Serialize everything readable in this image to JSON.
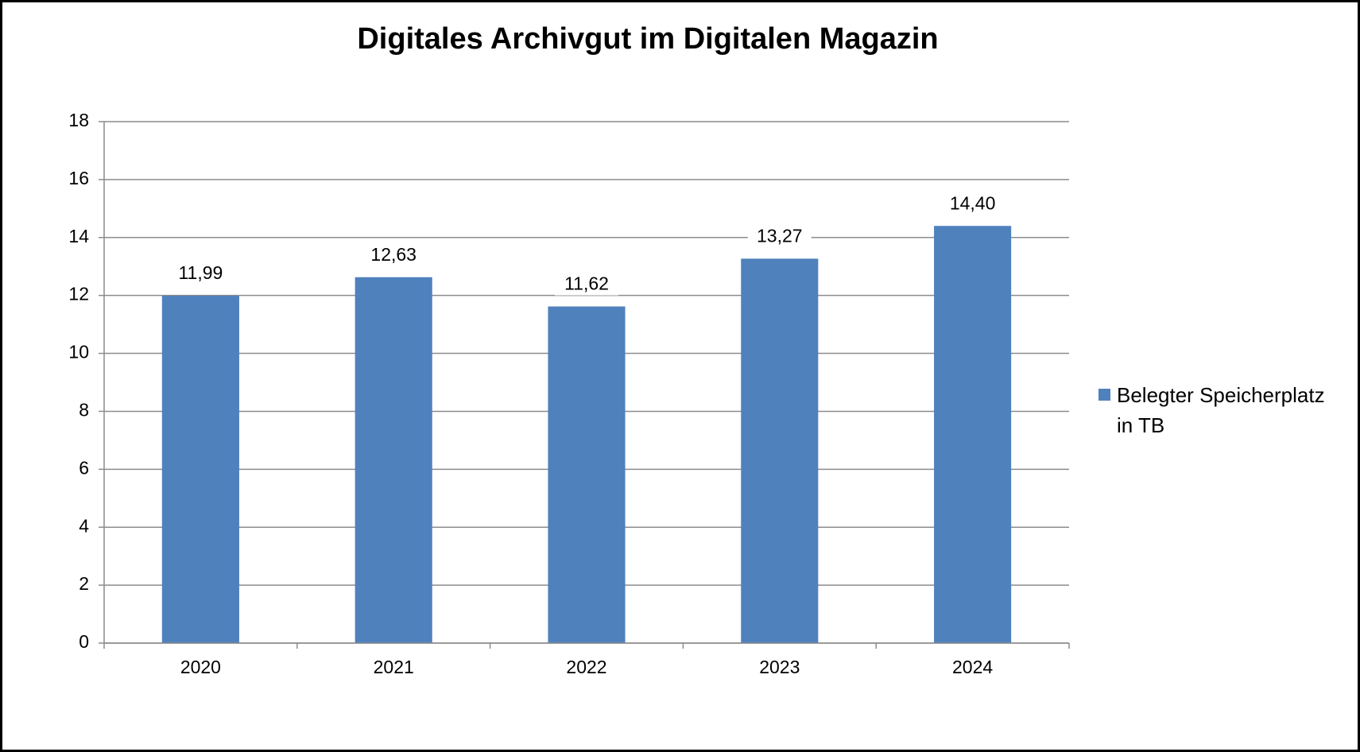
{
  "chart_data": {
    "type": "bar",
    "title": "Digitales Archivgut im Digitalen Magazin",
    "categories": [
      "2020",
      "2021",
      "2022",
      "2023",
      "2024"
    ],
    "series": [
      {
        "name": "Belegter Speicherplatz in TB",
        "color": "#4f81bd",
        "values": [
          11.99,
          12.63,
          11.62,
          13.27,
          14.4
        ],
        "value_labels": [
          "11,99",
          "12,63",
          "11,62",
          "13,27",
          "14,40"
        ]
      }
    ],
    "ylim": [
      0,
      18
    ],
    "yticks": [
      0,
      2,
      4,
      6,
      8,
      10,
      12,
      14,
      16,
      18
    ],
    "grid": true,
    "legend": "right"
  }
}
